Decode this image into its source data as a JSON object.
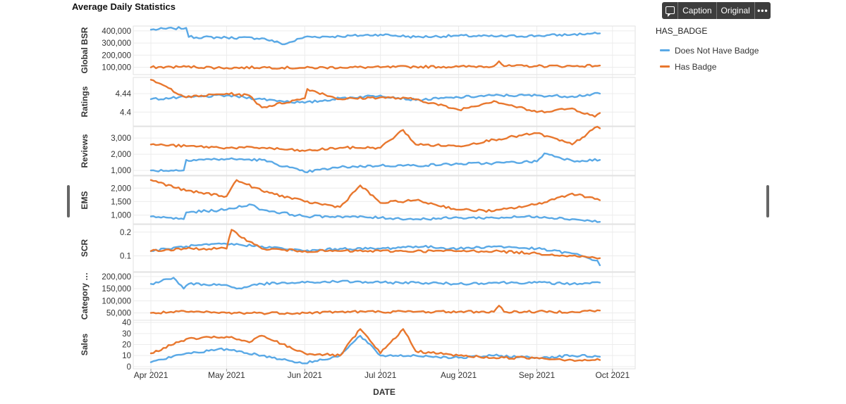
{
  "title": "Average Daily Statistics",
  "toolbar": {
    "comment_icon": "comment-icon",
    "caption_label": "Caption",
    "original_label": "Original",
    "more_label": "•••"
  },
  "legend": {
    "title": "HAS_BADGE",
    "items": [
      {
        "label": "Does Not Have Badge",
        "color": "#5aa9e6"
      },
      {
        "label": "Has Badge",
        "color": "#e8772e"
      }
    ]
  },
  "chart_data": {
    "type": "line",
    "x_label": "DATE",
    "x_ticks": [
      "Apr 2021",
      "May 2021",
      "Jun 2021",
      "Jul 2021",
      "Aug 2021",
      "Sep 2021",
      "Oct 2021"
    ],
    "x_range": [
      "2021-03-25",
      "2021-10-10"
    ],
    "series_names": [
      "Does Not Have Badge",
      "Has Badge"
    ],
    "colors": [
      "#5aa9e6",
      "#e8772e"
    ],
    "panels": [
      {
        "ylabel": "Global BSR",
        "yticks": [
          100000,
          200000,
          300000,
          400000
        ],
        "ytick_labels": [
          "100,000",
          "200,000",
          "300,000",
          "400,000"
        ],
        "ylim": [
          40000,
          440000
        ],
        "series": [
          {
            "name": "Does Not Have Badge",
            "x": [
              "2021-04-01",
              "2021-04-10",
              "2021-04-15",
              "2021-04-16",
              "2021-05-01",
              "2021-05-15",
              "2021-05-24",
              "2021-06-01",
              "2021-06-15",
              "2021-07-01",
              "2021-07-15",
              "2021-08-01",
              "2021-08-15",
              "2021-09-01",
              "2021-09-15",
              "2021-09-26"
            ],
            "values": [
              410000,
              420000,
              425000,
              350000,
              345000,
              340000,
              290000,
              350000,
              355000,
              370000,
              350000,
              360000,
              355000,
              360000,
              370000,
              380000
            ]
          },
          {
            "name": "Has Badge",
            "x": [
              "2021-04-01",
              "2021-04-15",
              "2021-05-01",
              "2021-05-15",
              "2021-06-01",
              "2021-06-15",
              "2021-07-01",
              "2021-07-15",
              "2021-08-01",
              "2021-08-15",
              "2021-08-17",
              "2021-08-19",
              "2021-09-01",
              "2021-09-15",
              "2021-09-26"
            ],
            "values": [
              100000,
              105000,
              95000,
              100000,
              95000,
              100000,
              100000,
              105000,
              105000,
              110000,
              150000,
              110000,
              110000,
              110000,
              115000
            ]
          }
        ]
      },
      {
        "ylabel": "Ratings",
        "yticks": [
          4.4,
          4.44
        ],
        "ytick_labels": [
          "4.4",
          "4.44"
        ],
        "ylim": [
          4.37,
          4.475
        ],
        "series": [
          {
            "name": "Does Not Have Badge",
            "x": [
              "2021-04-01",
              "2021-04-15",
              "2021-05-01",
              "2021-05-15",
              "2021-06-01",
              "2021-06-15",
              "2021-07-01",
              "2021-07-15",
              "2021-08-01",
              "2021-08-15",
              "2021-09-01",
              "2021-09-15",
              "2021-09-26"
            ],
            "values": [
              4.428,
              4.432,
              4.436,
              4.428,
              4.42,
              4.43,
              4.436,
              4.426,
              4.432,
              4.436,
              4.436,
              4.434,
              4.44
            ]
          },
          {
            "name": "Has Badge",
            "x": [
              "2021-04-01",
              "2021-04-08",
              "2021-04-15",
              "2021-05-01",
              "2021-05-10",
              "2021-05-15",
              "2021-06-01",
              "2021-06-02",
              "2021-06-15",
              "2021-07-01",
              "2021-07-15",
              "2021-08-01",
              "2021-08-15",
              "2021-09-01",
              "2021-09-15",
              "2021-09-24",
              "2021-09-26"
            ],
            "values": [
              4.47,
              4.452,
              4.432,
              4.44,
              4.436,
              4.41,
              4.43,
              4.45,
              4.428,
              4.432,
              4.428,
              4.405,
              4.424,
              4.4,
              4.408,
              4.39,
              4.398
            ]
          }
        ]
      },
      {
        "ylabel": "Reviews",
        "yticks": [
          1000,
          2000,
          3000
        ],
        "ytick_labels": [
          "1,000",
          "2,000",
          "3,000"
        ],
        "ylim": [
          700,
          3700
        ],
        "series": [
          {
            "name": "Does Not Have Badge",
            "x": [
              "2021-04-01",
              "2021-04-14",
              "2021-04-15",
              "2021-05-01",
              "2021-05-15",
              "2021-06-01",
              "2021-06-15",
              "2021-07-01",
              "2021-07-15",
              "2021-08-01",
              "2021-08-15",
              "2021-09-01",
              "2021-09-04",
              "2021-09-15",
              "2021-09-26"
            ],
            "values": [
              1000,
              1000,
              1650,
              1700,
              1650,
              900,
              1200,
              1300,
              1300,
              1400,
              1450,
              1550,
              2050,
              1600,
              1650
            ]
          },
          {
            "name": "Has Badge",
            "x": [
              "2021-04-01",
              "2021-04-15",
              "2021-05-01",
              "2021-05-15",
              "2021-06-01",
              "2021-06-15",
              "2021-07-01",
              "2021-07-10",
              "2021-07-15",
              "2021-08-01",
              "2021-08-15",
              "2021-09-01",
              "2021-09-15",
              "2021-09-25",
              "2021-09-26"
            ],
            "values": [
              2600,
              2500,
              2400,
              2400,
              2200,
              2400,
              2400,
              3500,
              2600,
              2500,
              2900,
              3300,
              2600,
              3700,
              3600
            ]
          }
        ]
      },
      {
        "ylabel": "EMS",
        "yticks": [
          1000,
          1500,
          2000
        ],
        "ytick_labels": [
          "1,000",
          "1,500",
          "2,000"
        ],
        "ylim": [
          650,
          2450
        ],
        "series": [
          {
            "name": "Does Not Have Badge",
            "x": [
              "2021-04-01",
              "2021-04-14",
              "2021-04-15",
              "2021-05-01",
              "2021-05-10",
              "2021-05-15",
              "2021-06-01",
              "2021-06-15",
              "2021-07-01",
              "2021-07-15",
              "2021-08-01",
              "2021-08-15",
              "2021-09-01",
              "2021-09-15",
              "2021-09-26"
            ],
            "values": [
              950,
              850,
              1100,
              1200,
              1400,
              1200,
              950,
              950,
              900,
              850,
              900,
              900,
              950,
              850,
              750
            ]
          },
          {
            "name": "Has Badge",
            "x": [
              "2021-04-01",
              "2021-04-15",
              "2021-05-01",
              "2021-05-05",
              "2021-05-15",
              "2021-06-01",
              "2021-06-15",
              "2021-06-23",
              "2021-07-01",
              "2021-07-15",
              "2021-08-01",
              "2021-08-15",
              "2021-09-01",
              "2021-09-15",
              "2021-09-25",
              "2021-09-26"
            ],
            "values": [
              2300,
              1900,
              1700,
              2300,
              1900,
              1500,
              1300,
              2100,
              1450,
              1550,
              1200,
              1150,
              1400,
              1800,
              1600,
              1550
            ]
          }
        ]
      },
      {
        "ylabel": "SCR",
        "yticks": [
          0.1,
          0.2
        ],
        "ytick_labels": [
          "0.1",
          "0.2"
        ],
        "ylim": [
          0.03,
          0.235
        ],
        "series": [
          {
            "name": "Does Not Have Badge",
            "x": [
              "2021-04-01",
              "2021-04-15",
              "2021-05-01",
              "2021-05-15",
              "2021-06-01",
              "2021-06-15",
              "2021-07-01",
              "2021-07-15",
              "2021-08-01",
              "2021-08-15",
              "2021-09-01",
              "2021-09-15",
              "2021-09-25",
              "2021-09-26"
            ],
            "values": [
              0.12,
              0.14,
              0.15,
              0.14,
              0.12,
              0.13,
              0.13,
              0.14,
              0.13,
              0.14,
              0.13,
              0.11,
              0.08,
              0.06
            ]
          },
          {
            "name": "Has Badge",
            "x": [
              "2021-04-01",
              "2021-04-15",
              "2021-05-01",
              "2021-05-03",
              "2021-05-10",
              "2021-05-15",
              "2021-06-01",
              "2021-06-15",
              "2021-07-01",
              "2021-07-15",
              "2021-08-01",
              "2021-08-15",
              "2021-09-01",
              "2021-09-15",
              "2021-09-26"
            ],
            "values": [
              0.12,
              0.13,
              0.13,
              0.21,
              0.16,
              0.13,
              0.12,
              0.12,
              0.12,
              0.12,
              0.12,
              0.12,
              0.11,
              0.1,
              0.09
            ]
          }
        ]
      },
      {
        "ylabel": "Category …",
        "yticks": [
          50000,
          100000,
          150000,
          200000
        ],
        "ytick_labels": [
          "50,000",
          "100,000",
          "150,000",
          "200,000"
        ],
        "ylim": [
          20000,
          220000
        ],
        "series": [
          {
            "name": "Does Not Have Badge",
            "x": [
              "2021-04-01",
              "2021-04-10",
              "2021-04-14",
              "2021-04-16",
              "2021-05-01",
              "2021-05-05",
              "2021-05-15",
              "2021-06-01",
              "2021-06-15",
              "2021-07-01",
              "2021-07-15",
              "2021-08-01",
              "2021-08-15",
              "2021-09-01",
              "2021-09-15",
              "2021-09-26"
            ],
            "values": [
              170000,
              195000,
              150000,
              170000,
              165000,
              150000,
              170000,
              175000,
              180000,
              175000,
              175000,
              170000,
              175000,
              175000,
              170000,
              175000
            ]
          },
          {
            "name": "Has Badge",
            "x": [
              "2021-04-01",
              "2021-04-15",
              "2021-05-01",
              "2021-05-15",
              "2021-06-01",
              "2021-06-15",
              "2021-07-01",
              "2021-07-15",
              "2021-08-01",
              "2021-08-15",
              "2021-08-17",
              "2021-08-19",
              "2021-09-01",
              "2021-09-15",
              "2021-09-26"
            ],
            "values": [
              50000,
              55000,
              50000,
              50000,
              50000,
              55000,
              55000,
              55000,
              55000,
              55000,
              80000,
              55000,
              55000,
              55000,
              60000
            ]
          }
        ]
      },
      {
        "ylabel": "Sales",
        "yticks": [
          0,
          10,
          20,
          30,
          40
        ],
        "ytick_labels": [
          "0",
          "10",
          "20",
          "30",
          "40"
        ],
        "ylim": [
          -2,
          42
        ],
        "series": [
          {
            "name": "Does Not Have Badge",
            "x": [
              "2021-04-01",
              "2021-04-15",
              "2021-05-01",
              "2021-05-15",
              "2021-06-01",
              "2021-06-15",
              "2021-06-23",
              "2021-07-01",
              "2021-07-15",
              "2021-08-01",
              "2021-08-15",
              "2021-09-01",
              "2021-09-15",
              "2021-09-26"
            ],
            "values": [
              4,
              12,
              16,
              10,
              3,
              10,
              28,
              10,
              10,
              8,
              10,
              8,
              10,
              9
            ]
          },
          {
            "name": "Has Badge",
            "x": [
              "2021-04-01",
              "2021-04-15",
              "2021-05-01",
              "2021-05-10",
              "2021-05-15",
              "2021-06-01",
              "2021-06-15",
              "2021-06-23",
              "2021-07-01",
              "2021-07-10",
              "2021-07-15",
              "2021-08-01",
              "2021-08-15",
              "2021-09-01",
              "2021-09-15",
              "2021-09-26"
            ],
            "values": [
              12,
              25,
              27,
              22,
              28,
              12,
              10,
              34,
              12,
              34,
              14,
              10,
              8,
              8,
              6,
              6
            ]
          }
        ]
      }
    ]
  }
}
